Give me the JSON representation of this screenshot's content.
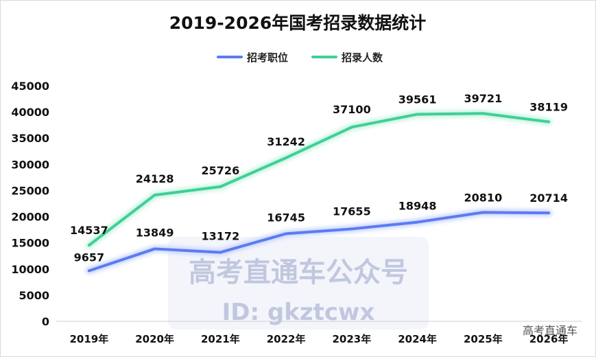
{
  "chart_data": {
    "type": "line",
    "title": "2019-2026年国考招录数据统计",
    "categories": [
      "2019年",
      "2020年",
      "2021年",
      "2022年",
      "2023年",
      "2024年",
      "2025年",
      "2026年"
    ],
    "series": [
      {
        "name": "招考职位",
        "color": "#5b7cf0",
        "glow": "#c9d4ff",
        "values": [
          9657,
          13849,
          13172,
          16745,
          17655,
          18948,
          20810,
          20714
        ]
      },
      {
        "name": "招录人数",
        "color": "#3fcf96",
        "glow": "#c8f3e0",
        "values": [
          14537,
          24128,
          25726,
          31242,
          37100,
          39561,
          39721,
          38119
        ]
      }
    ],
    "ylim": [
      0,
      45000
    ],
    "yticks": [
      0,
      5000,
      10000,
      15000,
      20000,
      25000,
      30000,
      35000,
      40000,
      45000
    ],
    "legend_position": "top-center",
    "grid": false
  },
  "watermark": {
    "line1": "高考直通车公众号",
    "line2": "ID: gkztcwx",
    "corner": "高考直通车"
  }
}
